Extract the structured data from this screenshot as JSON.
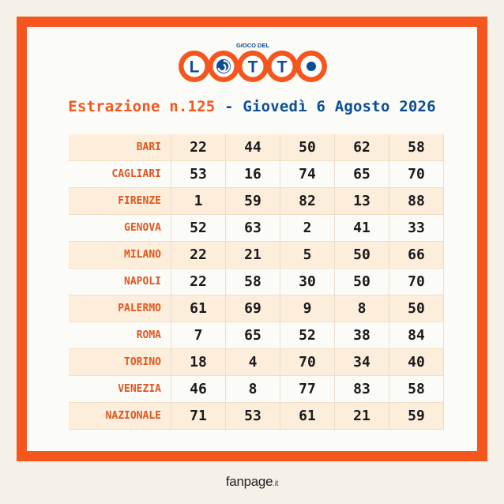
{
  "logo": {
    "top_text": "GIOCO DEL",
    "letters": [
      "L",
      "O",
      "T",
      "T",
      "O"
    ]
  },
  "headline": {
    "draw": "Estrazione n.125",
    "separator": "-",
    "date": "Giovedì 6 Agosto 2026"
  },
  "results": [
    {
      "city": "BARI",
      "numbers": [
        "22",
        "44",
        "50",
        "62",
        "58"
      ]
    },
    {
      "city": "CAGLIARI",
      "numbers": [
        "53",
        "16",
        "74",
        "65",
        "70"
      ]
    },
    {
      "city": "FIRENZE",
      "numbers": [
        "1",
        "59",
        "82",
        "13",
        "88"
      ]
    },
    {
      "city": "GENOVA",
      "numbers": [
        "52",
        "63",
        "2",
        "41",
        "33"
      ]
    },
    {
      "city": "MILANO",
      "numbers": [
        "22",
        "21",
        "5",
        "50",
        "66"
      ]
    },
    {
      "city": "NAPOLI",
      "numbers": [
        "22",
        "58",
        "30",
        "50",
        "70"
      ]
    },
    {
      "city": "PALERMO",
      "numbers": [
        "61",
        "69",
        "9",
        "8",
        "50"
      ]
    },
    {
      "city": "ROMA",
      "numbers": [
        "7",
        "65",
        "52",
        "38",
        "84"
      ]
    },
    {
      "city": "TORINO",
      "numbers": [
        "18",
        "4",
        "70",
        "34",
        "40"
      ]
    },
    {
      "city": "VENEZIA",
      "numbers": [
        "46",
        "8",
        "77",
        "83",
        "58"
      ]
    },
    {
      "city": "NAZIONALE",
      "numbers": [
        "71",
        "53",
        "61",
        "21",
        "59"
      ]
    }
  ],
  "brand": {
    "name": "fanpage",
    "tld": ".it"
  },
  "colors": {
    "accent": "#f4561d",
    "blue": "#0d4d93",
    "row_tint": "#fdeedc"
  }
}
